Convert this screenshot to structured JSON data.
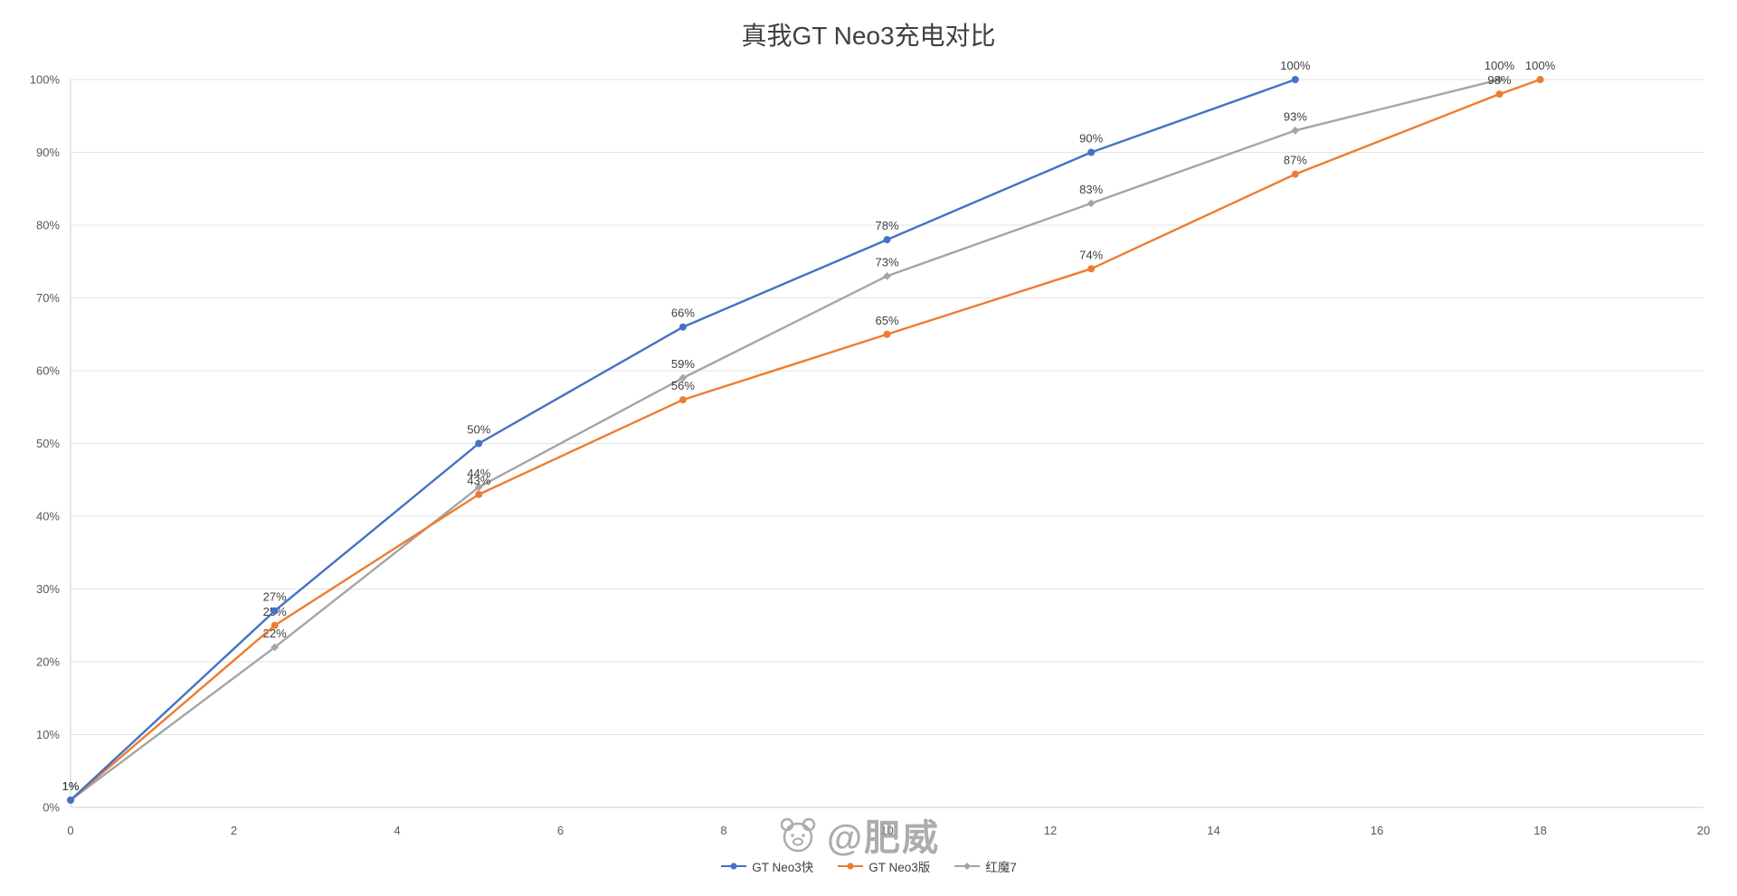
{
  "chart_data": {
    "type": "line",
    "title": "真我GT Neo3充电对比",
    "xlabel": "",
    "ylabel": "",
    "xlim": [
      0,
      20
    ],
    "ylim": [
      0,
      100
    ],
    "x_ticks": [
      0,
      2,
      4,
      6,
      8,
      10,
      12,
      14,
      16,
      18,
      20
    ],
    "y_ticks": [
      0,
      10,
      20,
      30,
      40,
      50,
      60,
      70,
      80,
      90,
      100
    ],
    "y_tick_suffix": "%",
    "grid": "horizontal",
    "legend_position": "bottom",
    "data_labels": true,
    "label_format": "{y}%",
    "series": [
      {
        "name": "GT Neo3快",
        "color": "#4472c4",
        "marker": "circle",
        "x": [
          0,
          2.5,
          5,
          7.5,
          10,
          12.5,
          15
        ],
        "y": [
          1,
          27,
          50,
          66,
          78,
          90,
          100
        ]
      },
      {
        "name": "GT Neo3版",
        "color": "#ed7d31",
        "marker": "circle",
        "x": [
          0,
          2.5,
          5,
          7.5,
          10,
          12.5,
          15,
          17.5,
          18
        ],
        "y": [
          1,
          25,
          43,
          56,
          65,
          74,
          87,
          98,
          100
        ]
      },
      {
        "name": "红魔7",
        "color": "#a5a5a5",
        "marker": "diamond",
        "x": [
          0,
          2.5,
          5,
          7.5,
          10,
          12.5,
          15,
          17.5
        ],
        "y": [
          1,
          22,
          44,
          59,
          73,
          83,
          93,
          100
        ]
      }
    ]
  },
  "watermark": {
    "text": "@肥威"
  },
  "colors": {
    "grid": "#e3e3e3",
    "axis": "#cfcfcf",
    "tick_text": "#595959",
    "data_label": "#3f3f3f",
    "title": "#404040",
    "watermark": "#9b9b9b"
  }
}
